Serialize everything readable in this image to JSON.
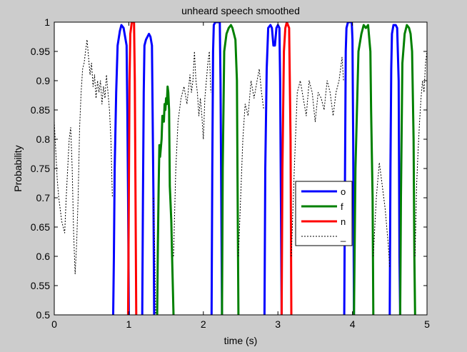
{
  "chart_data": {
    "type": "line",
    "title": "unheard speech smoothed",
    "xlabel": "time (s)",
    "ylabel": "Probability",
    "xlim": [
      0,
      5
    ],
    "ylim": [
      0.5,
      1
    ],
    "xticks": [
      "0",
      "1",
      "2",
      "3",
      "4",
      "5"
    ],
    "yticks": [
      "0.5",
      "0.55",
      "0.6",
      "0.65",
      "0.7",
      "0.75",
      "0.8",
      "0.85",
      "0.9",
      "0.95",
      "1"
    ],
    "grid": false,
    "legend_position": "center-right",
    "series": [
      {
        "name": "o",
        "color": "#0000ff",
        "style": "solid",
        "segments": [
          [
            [
              0.79,
              0.5
            ],
            [
              0.8,
              0.6
            ],
            [
              0.81,
              0.75
            ],
            [
              0.83,
              0.88
            ],
            [
              0.85,
              0.96
            ],
            [
              0.88,
              0.985
            ],
            [
              0.9,
              0.995
            ],
            [
              0.93,
              0.99
            ],
            [
              0.95,
              0.975
            ],
            [
              0.97,
              0.96
            ],
            [
              0.98,
              0.85
            ],
            [
              0.99,
              0.7
            ],
            [
              1.0,
              0.5
            ]
          ],
          [
            [
              1.18,
              0.5
            ],
            [
              1.19,
              0.7
            ],
            [
              1.2,
              0.88
            ],
            [
              1.21,
              0.96
            ],
            [
              1.23,
              0.97
            ],
            [
              1.25,
              0.975
            ],
            [
              1.27,
              0.98
            ],
            [
              1.29,
              0.975
            ],
            [
              1.31,
              0.96
            ],
            [
              1.33,
              0.7
            ],
            [
              1.34,
              0.5
            ]
          ],
          [
            [
              2.11,
              0.5
            ],
            [
              2.12,
              0.75
            ],
            [
              2.13,
              0.95
            ],
            [
              2.14,
              0.995
            ],
            [
              2.16,
              1.0
            ],
            [
              2.2,
              1.0
            ],
            [
              2.22,
              1.0
            ],
            [
              2.23,
              0.9
            ],
            [
              2.24,
              0.7
            ],
            [
              2.25,
              0.5
            ]
          ],
          [
            [
              2.82,
              0.5
            ],
            [
              2.83,
              0.75
            ],
            [
              2.85,
              0.92
            ],
            [
              2.87,
              0.99
            ],
            [
              2.9,
              0.995
            ],
            [
              2.92,
              0.99
            ],
            [
              2.94,
              0.96
            ],
            [
              2.96,
              0.96
            ],
            [
              2.98,
              0.99
            ],
            [
              3.0,
              0.995
            ],
            [
              3.02,
              0.99
            ],
            [
              3.03,
              0.9
            ],
            [
              3.04,
              0.7
            ],
            [
              3.05,
              0.5
            ]
          ],
          [
            [
              3.89,
              0.5
            ],
            [
              3.9,
              0.75
            ],
            [
              3.91,
              0.95
            ],
            [
              3.92,
              0.99
            ],
            [
              3.94,
              1.0
            ],
            [
              3.99,
              1.0
            ],
            [
              4.0,
              0.97
            ],
            [
              4.01,
              0.8
            ],
            [
              4.02,
              0.5
            ]
          ],
          [
            [
              4.5,
              0.5
            ],
            [
              4.51,
              0.75
            ],
            [
              4.52,
              0.92
            ],
            [
              4.53,
              0.98
            ],
            [
              4.55,
              0.995
            ],
            [
              4.58,
              0.995
            ],
            [
              4.6,
              0.99
            ],
            [
              4.62,
              0.9
            ],
            [
              4.63,
              0.6
            ],
            [
              4.64,
              0.5
            ]
          ]
        ]
      },
      {
        "name": "f",
        "color": "#008000",
        "style": "solid",
        "segments": [
          [
            [
              1.38,
              0.5
            ],
            [
              1.39,
              0.62
            ],
            [
              1.4,
              0.72
            ],
            [
              1.41,
              0.79
            ],
            [
              1.42,
              0.77
            ],
            [
              1.44,
              0.8
            ],
            [
              1.45,
              0.84
            ],
            [
              1.47,
              0.83
            ],
            [
              1.48,
              0.86
            ],
            [
              1.49,
              0.85
            ],
            [
              1.5,
              0.87
            ],
            [
              1.51,
              0.86
            ],
            [
              1.52,
              0.89
            ],
            [
              1.53,
              0.88
            ],
            [
              1.54,
              0.85
            ],
            [
              1.55,
              0.72
            ],
            [
              1.57,
              0.66
            ],
            [
              1.58,
              0.6
            ],
            [
              1.59,
              0.55
            ],
            [
              1.6,
              0.5
            ]
          ],
          [
            [
              2.25,
              0.5
            ],
            [
              2.26,
              0.75
            ],
            [
              2.28,
              0.95
            ],
            [
              2.31,
              0.98
            ],
            [
              2.34,
              0.99
            ],
            [
              2.37,
              0.995
            ],
            [
              2.39,
              0.99
            ],
            [
              2.41,
              0.98
            ],
            [
              2.43,
              0.97
            ],
            [
              2.45,
              0.9
            ],
            [
              2.46,
              0.7
            ],
            [
              2.47,
              0.5
            ]
          ],
          [
            [
              4.02,
              0.5
            ],
            [
              4.04,
              0.75
            ],
            [
              4.08,
              0.95
            ],
            [
              4.12,
              0.98
            ],
            [
              4.15,
              0.995
            ],
            [
              4.18,
              0.99
            ],
            [
              4.21,
              0.995
            ],
            [
              4.24,
              0.95
            ],
            [
              4.25,
              0.85
            ],
            [
              4.27,
              0.7
            ],
            [
              4.28,
              0.5
            ]
          ],
          [
            [
              4.64,
              0.5
            ],
            [
              4.65,
              0.7
            ],
            [
              4.67,
              0.93
            ],
            [
              4.7,
              0.98
            ],
            [
              4.73,
              0.995
            ],
            [
              4.76,
              0.99
            ],
            [
              4.78,
              0.98
            ],
            [
              4.8,
              0.95
            ],
            [
              4.82,
              0.8
            ],
            [
              4.83,
              0.6
            ],
            [
              4.84,
              0.5
            ]
          ]
        ]
      },
      {
        "name": "n",
        "color": "#ff0000",
        "style": "solid",
        "segments": [
          [
            [
              0.99,
              0.5
            ],
            [
              1.0,
              0.7
            ],
            [
              1.01,
              0.9
            ],
            [
              1.02,
              0.98
            ],
            [
              1.04,
              1.0
            ],
            [
              1.07,
              1.0
            ],
            [
              1.08,
              0.9
            ],
            [
              1.09,
              0.7
            ],
            [
              1.1,
              0.5
            ]
          ],
          [
            [
              3.05,
              0.5
            ],
            [
              3.06,
              0.75
            ],
            [
              3.08,
              0.95
            ],
            [
              3.1,
              0.99
            ],
            [
              3.12,
              1.0
            ],
            [
              3.15,
              0.99
            ],
            [
              3.17,
              0.8
            ],
            [
              3.18,
              0.5
            ]
          ]
        ]
      },
      {
        "name": "_",
        "color": "#000000",
        "style": "dashed",
        "segments": [
          [
            [
              0.0,
              0.83
            ],
            [
              0.02,
              0.78
            ],
            [
              0.04,
              0.73
            ],
            [
              0.06,
              0.7
            ],
            [
              0.08,
              0.68
            ],
            [
              0.1,
              0.66
            ],
            [
              0.12,
              0.65
            ],
            [
              0.14,
              0.64
            ],
            [
              0.16,
              0.7
            ],
            [
              0.18,
              0.75
            ],
            [
              0.2,
              0.8
            ],
            [
              0.22,
              0.82
            ],
            [
              0.24,
              0.75
            ],
            [
              0.26,
              0.64
            ],
            [
              0.28,
              0.57
            ],
            [
              0.3,
              0.62
            ],
            [
              0.32,
              0.7
            ],
            [
              0.34,
              0.82
            ],
            [
              0.36,
              0.88
            ],
            [
              0.38,
              0.92
            ],
            [
              0.4,
              0.93
            ],
            [
              0.42,
              0.95
            ],
            [
              0.44,
              0.97
            ],
            [
              0.46,
              0.94
            ],
            [
              0.48,
              0.91
            ],
            [
              0.5,
              0.93
            ],
            [
              0.52,
              0.89
            ],
            [
              0.54,
              0.91
            ],
            [
              0.56,
              0.87
            ],
            [
              0.58,
              0.9
            ],
            [
              0.6,
              0.88
            ],
            [
              0.62,
              0.9
            ],
            [
              0.64,
              0.86
            ],
            [
              0.66,
              0.89
            ],
            [
              0.68,
              0.87
            ],
            [
              0.7,
              0.91
            ],
            [
              0.72,
              0.88
            ],
            [
              0.74,
              0.85
            ],
            [
              0.76,
              0.8
            ],
            [
              0.78,
              0.7
            ]
          ],
          [
            [
              1.33,
              0.7
            ],
            [
              1.35,
              0.6
            ],
            [
              1.36,
              0.5
            ]
          ],
          [
            [
              1.6,
              0.6
            ],
            [
              1.63,
              0.75
            ],
            [
              1.66,
              0.83
            ],
            [
              1.7,
              0.87
            ],
            [
              1.74,
              0.89
            ],
            [
              1.78,
              0.86
            ],
            [
              1.82,
              0.91
            ],
            [
              1.84,
              0.88
            ],
            [
              1.86,
              0.9
            ],
            [
              1.88,
              0.95
            ],
            [
              1.9,
              0.9
            ],
            [
              1.92,
              0.88
            ],
            [
              1.94,
              0.84
            ],
            [
              1.96,
              0.87
            ],
            [
              1.98,
              0.84
            ],
            [
              2.0,
              0.8
            ],
            [
              2.02,
              0.87
            ],
            [
              2.04,
              0.9
            ],
            [
              2.06,
              0.93
            ],
            [
              2.08,
              0.95
            ],
            [
              2.1,
              0.88
            ]
          ],
          [
            [
              2.47,
              0.6
            ],
            [
              2.5,
              0.7
            ],
            [
              2.53,
              0.8
            ],
            [
              2.56,
              0.86
            ],
            [
              2.6,
              0.84
            ],
            [
              2.64,
              0.9
            ],
            [
              2.68,
              0.87
            ],
            [
              2.72,
              0.9
            ],
            [
              2.75,
              0.92
            ],
            [
              2.78,
              0.88
            ],
            [
              2.81,
              0.85
            ]
          ],
          [
            [
              3.18,
              0.6
            ],
            [
              3.22,
              0.75
            ],
            [
              3.26,
              0.88
            ],
            [
              3.3,
              0.9
            ],
            [
              3.34,
              0.87
            ],
            [
              3.38,
              0.84
            ],
            [
              3.42,
              0.9
            ],
            [
              3.46,
              0.88
            ],
            [
              3.5,
              0.83
            ],
            [
              3.54,
              0.88
            ],
            [
              3.58,
              0.87
            ],
            [
              3.62,
              0.85
            ],
            [
              3.66,
              0.9
            ],
            [
              3.7,
              0.88
            ],
            [
              3.74,
              0.84
            ],
            [
              3.78,
              0.88
            ],
            [
              3.82,
              0.9
            ],
            [
              3.86,
              0.94
            ],
            [
              3.88,
              0.9
            ]
          ],
          [
            [
              4.28,
              0.6
            ],
            [
              4.32,
              0.7
            ],
            [
              4.36,
              0.76
            ],
            [
              4.4,
              0.72
            ],
            [
              4.44,
              0.68
            ],
            [
              4.48,
              0.62
            ],
            [
              4.5,
              0.58
            ]
          ],
          [
            [
              4.84,
              0.6
            ],
            [
              4.86,
              0.72
            ],
            [
              4.88,
              0.78
            ],
            [
              4.9,
              0.83
            ],
            [
              4.92,
              0.87
            ],
            [
              4.94,
              0.9
            ],
            [
              4.96,
              0.88
            ],
            [
              4.98,
              0.93
            ],
            [
              5.0,
              0.95
            ]
          ]
        ]
      }
    ]
  }
}
